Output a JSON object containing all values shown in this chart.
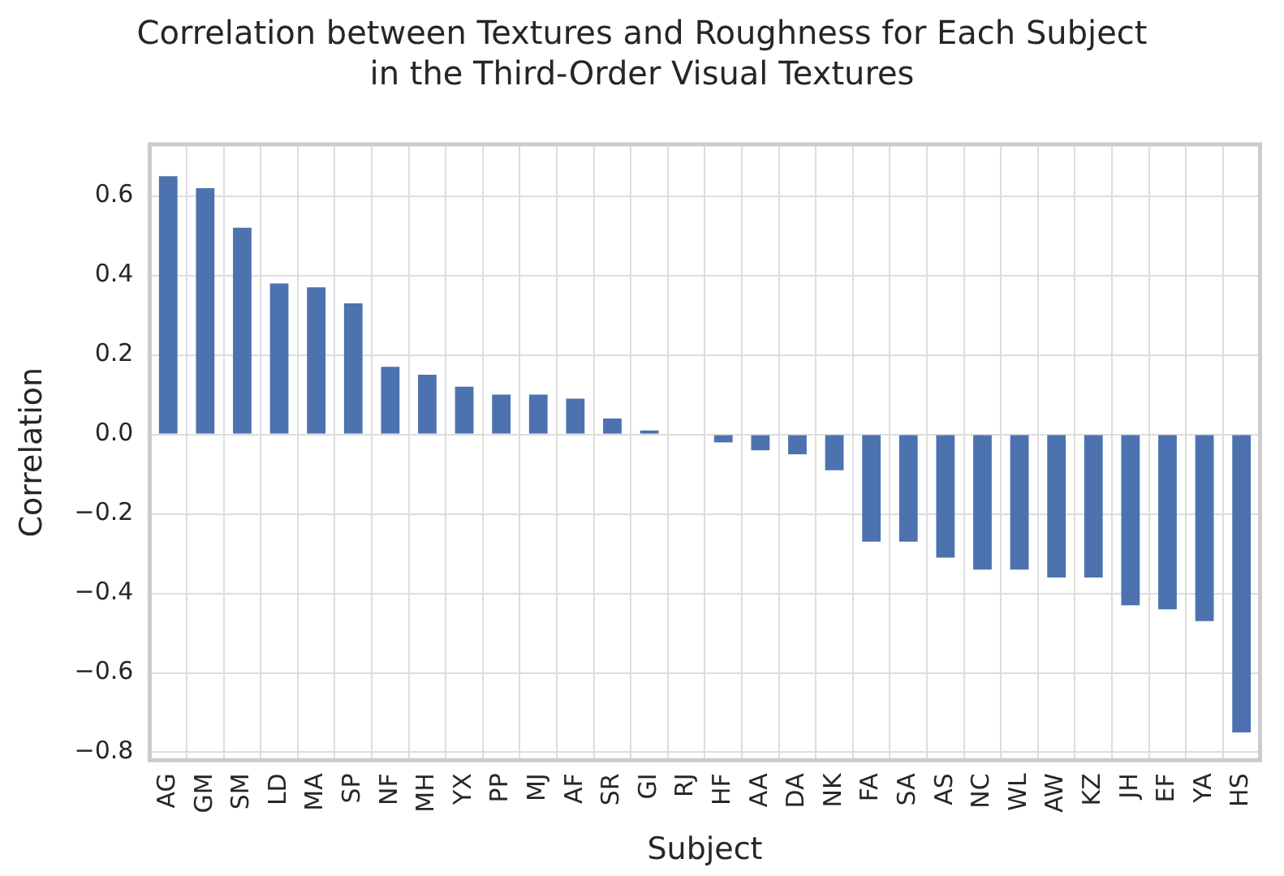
{
  "chart_data": {
    "type": "bar",
    "title": "Correlation between Textures and Roughness for Each Subject\nin the Third-Order Visual Textures",
    "xlabel": "Subject",
    "ylabel": "Correlation",
    "categories": [
      "AG",
      "GM",
      "SM",
      "LD",
      "MA",
      "SP",
      "NF",
      "MH",
      "YX",
      "PP",
      "MJ",
      "AF",
      "SR",
      "GI",
      "RJ",
      "HF",
      "AA",
      "DA",
      "NK",
      "FA",
      "SA",
      "AS",
      "NC",
      "WL",
      "AW",
      "KZ",
      "JH",
      "EF",
      "YA",
      "HS"
    ],
    "values": [
      0.65,
      0.62,
      0.52,
      0.38,
      0.37,
      0.33,
      0.17,
      0.15,
      0.12,
      0.1,
      0.1,
      0.09,
      0.04,
      0.01,
      0,
      -0.02,
      -0.04,
      -0.05,
      -0.09,
      -0.27,
      -0.27,
      -0.31,
      -0.34,
      -0.34,
      -0.36,
      -0.36,
      -0.43,
      -0.44,
      -0.47,
      -0.75
    ],
    "color": "#4c72b0",
    "ylim": [
      -0.82,
      0.73
    ],
    "yticks": [
      {
        "value": -0.8,
        "label": "−0.8"
      },
      {
        "value": -0.6,
        "label": "−0.6"
      },
      {
        "value": -0.4,
        "label": "−0.4"
      },
      {
        "value": -0.2,
        "label": "−0.2"
      },
      {
        "value": 0,
        "label": "0.0"
      },
      {
        "value": 0.2,
        "label": "0.2"
      },
      {
        "value": 0.4,
        "label": "0.4"
      },
      {
        "value": 0.6,
        "label": "0.6"
      }
    ],
    "grid": true,
    "legend": false
  }
}
